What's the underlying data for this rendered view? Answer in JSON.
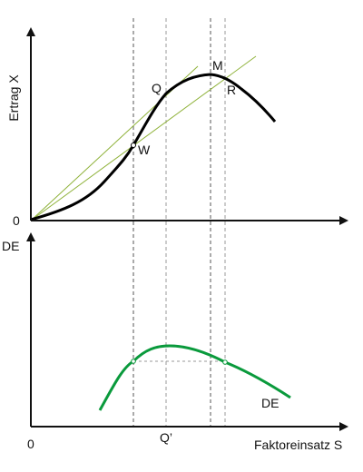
{
  "upper": {
    "y_axis_label": "Ertrag X",
    "origin_label": "0",
    "points": {
      "Q": "Q",
      "M": "M",
      "R": "R",
      "W": "W"
    }
  },
  "lower": {
    "y_axis_label": "DE",
    "origin_label": "0",
    "x_tick_label": "Q’",
    "x_axis_label": "Faktoreinsatz S",
    "curve_label": "DE"
  },
  "colors": {
    "axis": "#111111",
    "curve_upper": "#000000",
    "curve_lower": "#0a9a3c",
    "rays": "#8fb23a",
    "guides": "#555555"
  }
}
